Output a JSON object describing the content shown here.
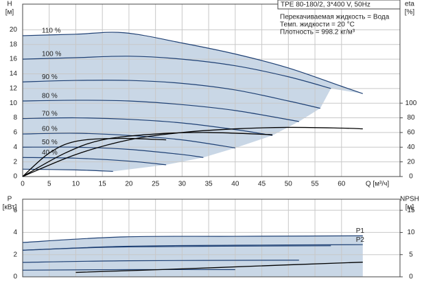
{
  "chart_data": [
    {
      "type": "line",
      "title": "TPE 80-180/2, 3*400 V, 50Hz",
      "annotations": [
        "Перекачиваемая жидкость = Вода",
        "Темп. жидкости = 20 °C",
        "Плотность = 998.2 кг/м³"
      ],
      "y_label": "H",
      "y_unit": "[м]",
      "y2_label": "eta",
      "y2_unit": "[%]",
      "x_label": "Q [м³/ч]",
      "xlim": [
        0,
        71
      ],
      "xticks": [
        0,
        5,
        10,
        15,
        20,
        25,
        30,
        35,
        40,
        45,
        50,
        55,
        60
      ],
      "ylim": [
        0,
        23.5
      ],
      "yticks": [
        0,
        2,
        4,
        6,
        8,
        10,
        12,
        14,
        16,
        18,
        20
      ],
      "y2lim": [
        0,
        235
      ],
      "y2ticks": [
        0,
        20,
        40,
        60,
        80,
        100
      ],
      "grid": true,
      "fill": "envelope",
      "fill_color": "#c9d7e6",
      "series_label_position": "start",
      "series": [
        {
          "name": "110 %",
          "color": "#1d3f73",
          "x": [
            0,
            10,
            19,
            30,
            40,
            50,
            60,
            64
          ],
          "values": [
            19.2,
            19.4,
            19.6,
            18.2,
            16.7,
            14.8,
            12.3,
            11.3
          ]
        },
        {
          "name": "100 %",
          "color": "#1d3f73",
          "x": [
            0,
            10,
            20,
            30,
            40,
            50,
            58
          ],
          "values": [
            16.0,
            16.2,
            16.4,
            16.0,
            15.1,
            13.6,
            12.0
          ]
        },
        {
          "name": "90 %",
          "color": "#1d3f73",
          "x": [
            0,
            10,
            20,
            30,
            40,
            50,
            56
          ],
          "values": [
            12.9,
            13.1,
            13.1,
            12.7,
            11.8,
            10.3,
            9.3
          ]
        },
        {
          "name": "80 %",
          "color": "#1d3f73",
          "x": [
            0,
            10,
            20,
            30,
            40,
            52
          ],
          "values": [
            10.3,
            10.4,
            10.3,
            9.8,
            9.0,
            7.5
          ]
        },
        {
          "name": "70 %",
          "color": "#1d3f73",
          "x": [
            0,
            10,
            20,
            30,
            40,
            47
          ],
          "values": [
            7.9,
            8.0,
            7.8,
            7.3,
            6.4,
            5.6
          ]
        },
        {
          "name": "60 %",
          "color": "#1d3f73",
          "x": [
            0,
            10,
            20,
            30,
            40
          ],
          "values": [
            5.8,
            5.9,
            5.6,
            5.0,
            3.9
          ]
        },
        {
          "name": "50 %",
          "color": "#1d3f73",
          "x": [
            0,
            10,
            20,
            30,
            34
          ],
          "values": [
            4.0,
            4.0,
            3.7,
            3.0,
            2.6
          ]
        },
        {
          "name": "40 %",
          "color": "#1d3f73",
          "x": [
            0,
            10,
            20,
            27
          ],
          "values": [
            2.6,
            2.5,
            2.1,
            1.6
          ]
        },
        {
          "color": "#1d3f73",
          "x": [
            0,
            10,
            17
          ],
          "values": [
            1.0,
            0.9,
            0.7
          ]
        },
        {
          "color": "#000000",
          "axis": "y2",
          "x": [
            0,
            10,
            20,
            30,
            40,
            50,
            60,
            64
          ],
          "values": [
            0,
            30,
            50,
            60,
            65,
            67,
            66,
            65
          ]
        },
        {
          "color": "#000000",
          "axis": "y2",
          "x": [
            0,
            8,
            15,
            25,
            35,
            47
          ],
          "values": [
            0,
            32,
            50,
            58,
            60,
            57
          ]
        },
        {
          "color": "#000000",
          "axis": "y2",
          "x": [
            0,
            5,
            10,
            18,
            27
          ],
          "values": [
            0,
            32,
            48,
            52,
            50
          ]
        }
      ]
    },
    {
      "type": "line",
      "y_label": "P",
      "y_unit": "[кВт]",
      "y2_label": "NPSH",
      "y2_unit": "[м]",
      "xlim": [
        0,
        71
      ],
      "xticks": [
        0,
        5,
        10,
        15,
        20,
        25,
        30,
        35,
        40,
        45,
        50,
        55,
        60
      ],
      "ylim": [
        0,
        7
      ],
      "yticks": [
        0,
        2,
        4,
        6
      ],
      "y2lim": [
        0,
        17.5
      ],
      "y2ticks": [
        0,
        5,
        10,
        15
      ],
      "grid": true,
      "fill": "under-first",
      "fill_color": "#c9d7e6",
      "series_label_position": "end",
      "series": [
        {
          "name": "P1",
          "color": "#1d3f73",
          "x": [
            0,
            19,
            40,
            64
          ],
          "values": [
            3.1,
            3.6,
            3.65,
            3.7
          ]
        },
        {
          "name": "P2",
          "color": "#1d3f73",
          "x": [
            0,
            19,
            40,
            64
          ],
          "values": [
            2.4,
            2.75,
            2.85,
            2.9
          ]
        },
        {
          "color": "#1d3f73",
          "x": [
            0,
            20,
            58
          ],
          "values": [
            2.4,
            2.7,
            2.8
          ]
        },
        {
          "color": "#1d3f73",
          "x": [
            0,
            20,
            52
          ],
          "values": [
            1.3,
            1.45,
            1.5
          ]
        },
        {
          "color": "#1d3f73",
          "x": [
            0,
            20,
            40
          ],
          "values": [
            0.6,
            0.65,
            0.65
          ]
        },
        {
          "color": "#000000",
          "axis": "y2",
          "x": [
            10,
            30,
            50,
            64
          ],
          "values": [
            1.0,
            1.8,
            2.7,
            3.3
          ]
        }
      ]
    }
  ]
}
